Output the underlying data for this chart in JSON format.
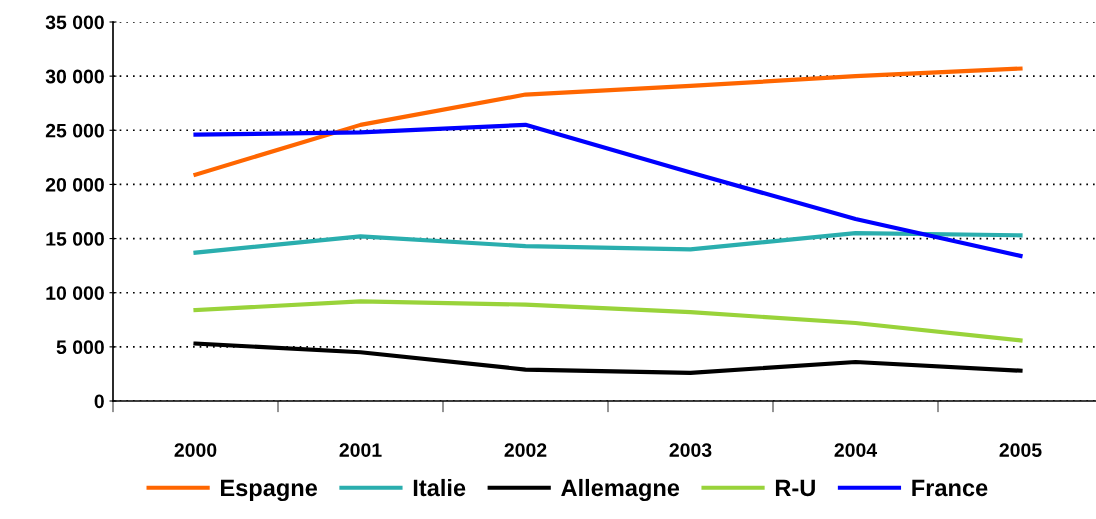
{
  "chart_data": {
    "type": "line",
    "categories": [
      "2000",
      "2001",
      "2002",
      "2003",
      "2004",
      "2005"
    ],
    "series": [
      {
        "name": "Espagne",
        "color": "#ff6600",
        "values": [
          20900,
          25500,
          28300,
          29100,
          30000,
          30700
        ]
      },
      {
        "name": "Italie",
        "color": "#2aaeae",
        "values": [
          13700,
          15200,
          14300,
          14000,
          15500,
          15300
        ]
      },
      {
        "name": "Allemagne",
        "color": "#000000",
        "values": [
          5300,
          4500,
          2900,
          2600,
          3600,
          2800
        ]
      },
      {
        "name": "R-U",
        "color": "#99d33a",
        "values": [
          8400,
          9200,
          8900,
          8200,
          7200,
          5600
        ]
      },
      {
        "name": "France",
        "color": "#0000ff",
        "values": [
          24600,
          24800,
          25500,
          21100,
          16800,
          13400
        ]
      }
    ],
    "ylim": [
      0,
      35000
    ],
    "yticks": [
      {
        "value": 0,
        "label": "0"
      },
      {
        "value": 5000,
        "label": "5 000"
      },
      {
        "value": 10000,
        "label": "10 000"
      },
      {
        "value": 15000,
        "label": "15 000"
      },
      {
        "value": 20000,
        "label": "20 000"
      },
      {
        "value": 25000,
        "label": "25 000"
      },
      {
        "value": 30000,
        "label": "30 000"
      },
      {
        "value": 35000,
        "label": "35 000"
      }
    ],
    "grid": "y",
    "legend": "bottom",
    "marker": "none",
    "line_style": "solid"
  }
}
